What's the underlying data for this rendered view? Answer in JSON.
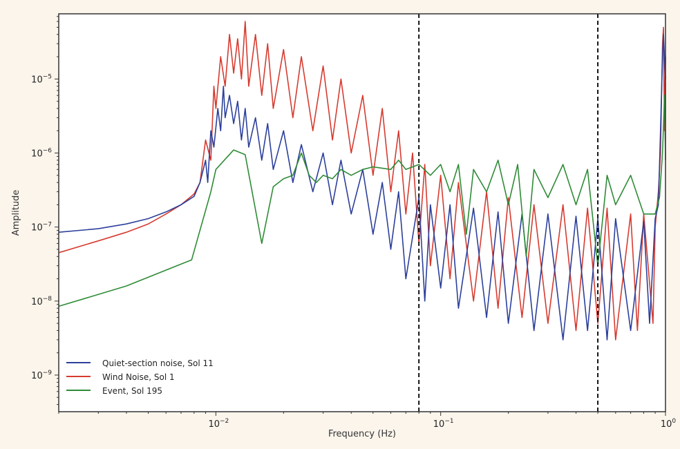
{
  "chart_data": {
    "type": "line",
    "title": "",
    "xlabel": "Frequency (Hz)",
    "ylabel": "Amplitude",
    "xscale": "log",
    "yscale": "log",
    "xlim": [
      0.002,
      1
    ],
    "ylim": [
      3.2e-10,
      7.6e-05
    ],
    "grid": false,
    "legend_position": "bottom-left",
    "x_tick_labels": [
      {
        "value": 0.01,
        "base": "10",
        "exp": "−2"
      },
      {
        "value": 0.1,
        "base": "10",
        "exp": "−1"
      },
      {
        "value": 1,
        "base": "10",
        "exp": "0"
      }
    ],
    "y_tick_labels": [
      {
        "value": 1e-05,
        "base": "10",
        "exp": "−5"
      },
      {
        "value": 1e-06,
        "base": "10",
        "exp": "−6"
      },
      {
        "value": 1e-07,
        "base": "10",
        "exp": "−7"
      },
      {
        "value": 1e-08,
        "base": "10",
        "exp": "−8"
      },
      {
        "value": 1e-09,
        "base": "10",
        "exp": "−9"
      }
    ],
    "vertical_dashed_lines": [
      0.08,
      0.5
    ],
    "series": [
      {
        "name": "Wind Noise, Sol 1",
        "color": "#d63a2f",
        "points": [
          [
            0.002,
            4.5e-08
          ],
          [
            0.003,
            6.5e-08
          ],
          [
            0.004,
            8.5e-08
          ],
          [
            0.005,
            1.1e-07
          ],
          [
            0.006,
            1.5e-07
          ],
          [
            0.007,
            2e-07
          ],
          [
            0.008,
            2.8e-07
          ],
          [
            0.0085,
            4e-07
          ],
          [
            0.009,
            1.5e-06
          ],
          [
            0.0095,
            8e-07
          ],
          [
            0.0098,
            8e-06
          ],
          [
            0.01,
            4e-06
          ],
          [
            0.0105,
            2e-05
          ],
          [
            0.011,
            8e-06
          ],
          [
            0.0115,
            4e-05
          ],
          [
            0.012,
            1.2e-05
          ],
          [
            0.0125,
            3.5e-05
          ],
          [
            0.013,
            1e-05
          ],
          [
            0.0135,
            6e-05
          ],
          [
            0.014,
            8e-06
          ],
          [
            0.015,
            4e-05
          ],
          [
            0.016,
            6e-06
          ],
          [
            0.017,
            3e-05
          ],
          [
            0.018,
            4e-06
          ],
          [
            0.02,
            2.5e-05
          ],
          [
            0.022,
            3e-06
          ],
          [
            0.024,
            2e-05
          ],
          [
            0.027,
            2e-06
          ],
          [
            0.03,
            1.5e-05
          ],
          [
            0.033,
            1.5e-06
          ],
          [
            0.036,
            1e-05
          ],
          [
            0.04,
            1e-06
          ],
          [
            0.045,
            6e-06
          ],
          [
            0.05,
            5e-07
          ],
          [
            0.055,
            4e-06
          ],
          [
            0.06,
            3e-07
          ],
          [
            0.065,
            2e-06
          ],
          [
            0.07,
            1.5e-07
          ],
          [
            0.075,
            1e-06
          ],
          [
            0.08,
            6e-08
          ],
          [
            0.085,
            7e-07
          ],
          [
            0.09,
            3e-08
          ],
          [
            0.1,
            5e-07
          ],
          [
            0.11,
            2e-08
          ],
          [
            0.12,
            4e-07
          ],
          [
            0.14,
            1e-08
          ],
          [
            0.16,
            3e-07
          ],
          [
            0.18,
            8e-09
          ],
          [
            0.2,
            2.5e-07
          ],
          [
            0.23,
            6e-09
          ],
          [
            0.26,
            2e-07
          ],
          [
            0.3,
            5e-09
          ],
          [
            0.35,
            2e-07
          ],
          [
            0.4,
            4e-09
          ],
          [
            0.45,
            1.8e-07
          ],
          [
            0.5,
            5e-09
          ],
          [
            0.55,
            1.8e-07
          ],
          [
            0.6,
            3e-09
          ],
          [
            0.7,
            1.5e-07
          ],
          [
            0.75,
            4e-09
          ],
          [
            0.8,
            1.5e-07
          ],
          [
            0.88,
            5e-09
          ],
          [
            0.9,
            1e-07
          ],
          [
            0.93,
            3e-07
          ],
          [
            0.95,
            1e-06
          ],
          [
            0.97,
            3e-05
          ],
          [
            0.98,
            5e-05
          ],
          [
            0.99,
            2e-06
          ],
          [
            1.0,
            2e-05
          ]
        ]
      },
      {
        "name": "Quiet-section noise, Sol 11",
        "color": "#2b3f9b",
        "points": [
          [
            0.002,
            8.5e-08
          ],
          [
            0.003,
            9.5e-08
          ],
          [
            0.004,
            1.1e-07
          ],
          [
            0.005,
            1.3e-07
          ],
          [
            0.006,
            1.6e-07
          ],
          [
            0.007,
            2e-07
          ],
          [
            0.008,
            2.6e-07
          ],
          [
            0.0085,
            4e-07
          ],
          [
            0.009,
            8e-07
          ],
          [
            0.0092,
            4e-07
          ],
          [
            0.0095,
            2e-06
          ],
          [
            0.0098,
            1.2e-06
          ],
          [
            0.0102,
            4e-06
          ],
          [
            0.0105,
            2e-06
          ],
          [
            0.0108,
            8e-06
          ],
          [
            0.011,
            3e-06
          ],
          [
            0.0115,
            6e-06
          ],
          [
            0.012,
            2.5e-06
          ],
          [
            0.0125,
            5e-06
          ],
          [
            0.013,
            1.5e-06
          ],
          [
            0.0135,
            4e-06
          ],
          [
            0.014,
            1.2e-06
          ],
          [
            0.015,
            3e-06
          ],
          [
            0.016,
            8e-07
          ],
          [
            0.017,
            2.5e-06
          ],
          [
            0.018,
            6e-07
          ],
          [
            0.02,
            2e-06
          ],
          [
            0.022,
            4e-07
          ],
          [
            0.024,
            1.3e-06
          ],
          [
            0.027,
            3e-07
          ],
          [
            0.03,
            1e-06
          ],
          [
            0.033,
            2e-07
          ],
          [
            0.036,
            8e-07
          ],
          [
            0.04,
            1.5e-07
          ],
          [
            0.045,
            6e-07
          ],
          [
            0.05,
            8e-08
          ],
          [
            0.055,
            4e-07
          ],
          [
            0.06,
            5e-08
          ],
          [
            0.065,
            3e-07
          ],
          [
            0.07,
            2e-08
          ],
          [
            0.08,
            2.5e-07
          ],
          [
            0.085,
            1e-08
          ],
          [
            0.09,
            2e-07
          ],
          [
            0.1,
            1.5e-08
          ],
          [
            0.11,
            2e-07
          ],
          [
            0.12,
            8e-09
          ],
          [
            0.14,
            1.8e-07
          ],
          [
            0.16,
            6e-09
          ],
          [
            0.18,
            1.6e-07
          ],
          [
            0.2,
            5e-09
          ],
          [
            0.23,
            1.5e-07
          ],
          [
            0.26,
            4e-09
          ],
          [
            0.3,
            1.5e-07
          ],
          [
            0.35,
            3e-09
          ],
          [
            0.4,
            1.4e-07
          ],
          [
            0.45,
            4e-09
          ],
          [
            0.5,
            1.3e-07
          ],
          [
            0.55,
            3e-09
          ],
          [
            0.6,
            1.3e-07
          ],
          [
            0.7,
            4e-09
          ],
          [
            0.8,
            1.2e-07
          ],
          [
            0.85,
            5e-09
          ],
          [
            0.9,
            1.3e-07
          ],
          [
            0.93,
            2e-07
          ],
          [
            0.95,
            2e-06
          ],
          [
            0.97,
            2e-05
          ],
          [
            0.98,
            4e-05
          ],
          [
            1.0,
            1e-05
          ]
        ]
      },
      {
        "name": "Event, Sol 195",
        "color": "#2e8b36",
        "points": [
          [
            0.002,
            8.5e-09
          ],
          [
            0.004,
            1.6e-08
          ],
          [
            0.0078,
            3.6e-08
          ],
          [
            0.0095,
            3e-07
          ],
          [
            0.01,
            6e-07
          ],
          [
            0.012,
            1.1e-06
          ],
          [
            0.0135,
            9.5e-07
          ],
          [
            0.016,
            6e-08
          ],
          [
            0.018,
            3.5e-07
          ],
          [
            0.02,
            4.5e-07
          ],
          [
            0.022,
            5e-07
          ],
          [
            0.024,
            1e-06
          ],
          [
            0.026,
            5e-07
          ],
          [
            0.028,
            4e-07
          ],
          [
            0.03,
            5e-07
          ],
          [
            0.033,
            4.5e-07
          ],
          [
            0.036,
            6e-07
          ],
          [
            0.04,
            5e-07
          ],
          [
            0.045,
            6e-07
          ],
          [
            0.05,
            6.5e-07
          ],
          [
            0.06,
            6e-07
          ],
          [
            0.065,
            8e-07
          ],
          [
            0.07,
            6e-07
          ],
          [
            0.08,
            7e-07
          ],
          [
            0.09,
            5e-07
          ],
          [
            0.1,
            7e-07
          ],
          [
            0.11,
            3e-07
          ],
          [
            0.12,
            7e-07
          ],
          [
            0.13,
            8e-08
          ],
          [
            0.14,
            6e-07
          ],
          [
            0.16,
            3e-07
          ],
          [
            0.18,
            8e-07
          ],
          [
            0.2,
            2e-07
          ],
          [
            0.22,
            7e-07
          ],
          [
            0.24,
            4e-08
          ],
          [
            0.26,
            6e-07
          ],
          [
            0.3,
            2.5e-07
          ],
          [
            0.35,
            7e-07
          ],
          [
            0.4,
            2e-07
          ],
          [
            0.45,
            6e-07
          ],
          [
            0.5,
            3e-08
          ],
          [
            0.55,
            5e-07
          ],
          [
            0.6,
            2e-07
          ],
          [
            0.7,
            5e-07
          ],
          [
            0.8,
            1.5e-07
          ],
          [
            0.9,
            1.5e-07
          ],
          [
            0.94,
            2.5e-07
          ],
          [
            0.97,
            1e-06
          ],
          [
            0.99,
            6e-06
          ],
          [
            1.0,
            8e-07
          ]
        ]
      }
    ],
    "legend_order": [
      1,
      0,
      2
    ]
  }
}
